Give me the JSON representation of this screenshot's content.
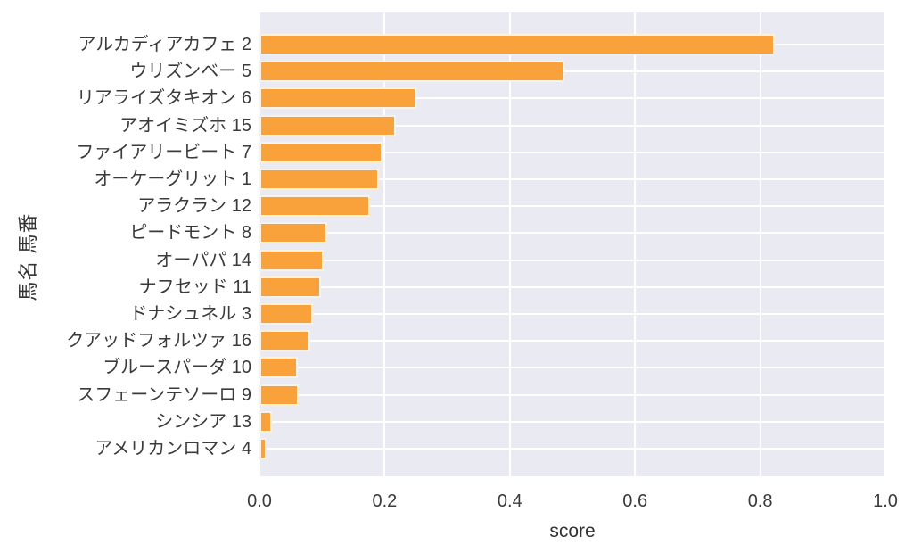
{
  "colors": {
    "figure_background": "#ffffff",
    "plot_background": "#eaeaf2",
    "gridline": "#ffffff",
    "bar_fill": "#f9a23c",
    "bar_edge": "#f5f1e9",
    "text": "#3b3b3b"
  },
  "chart_data": {
    "type": "bar",
    "orientation": "horizontal",
    "title": "",
    "xlabel": "score",
    "ylabel": "馬名 馬番",
    "xlim": [
      0.0,
      1.0
    ],
    "grid": true,
    "legend": false,
    "xticks": [
      {
        "value": 0.0,
        "label": "0.0"
      },
      {
        "value": 0.2,
        "label": "0.2"
      },
      {
        "value": 0.4,
        "label": "0.4"
      },
      {
        "value": 0.6,
        "label": "0.6"
      },
      {
        "value": 0.8,
        "label": "0.8"
      },
      {
        "value": 1.0,
        "label": "1.0"
      }
    ],
    "categories": [
      "アルカディアカフェ 2",
      "ウリズンベー 5",
      "リアライズタキオン 6",
      "アオイミズホ 15",
      "ファイアリービート 7",
      "オーケーグリット 1",
      "アラクラン 12",
      "ピードモント 8",
      "オーパパ 14",
      "ナフセッド 11",
      "ドナシュネル 3",
      "クアッドフォルツァ 16",
      "ブルースパーダ 10",
      "スフェーンテソーロ 9",
      "シンシア 13",
      "アメリカンロマン 4"
    ],
    "values": [
      0.824,
      0.487,
      0.25,
      0.218,
      0.197,
      0.191,
      0.177,
      0.108,
      0.103,
      0.099,
      0.086,
      0.081,
      0.061,
      0.062,
      0.02,
      0.011
    ]
  }
}
